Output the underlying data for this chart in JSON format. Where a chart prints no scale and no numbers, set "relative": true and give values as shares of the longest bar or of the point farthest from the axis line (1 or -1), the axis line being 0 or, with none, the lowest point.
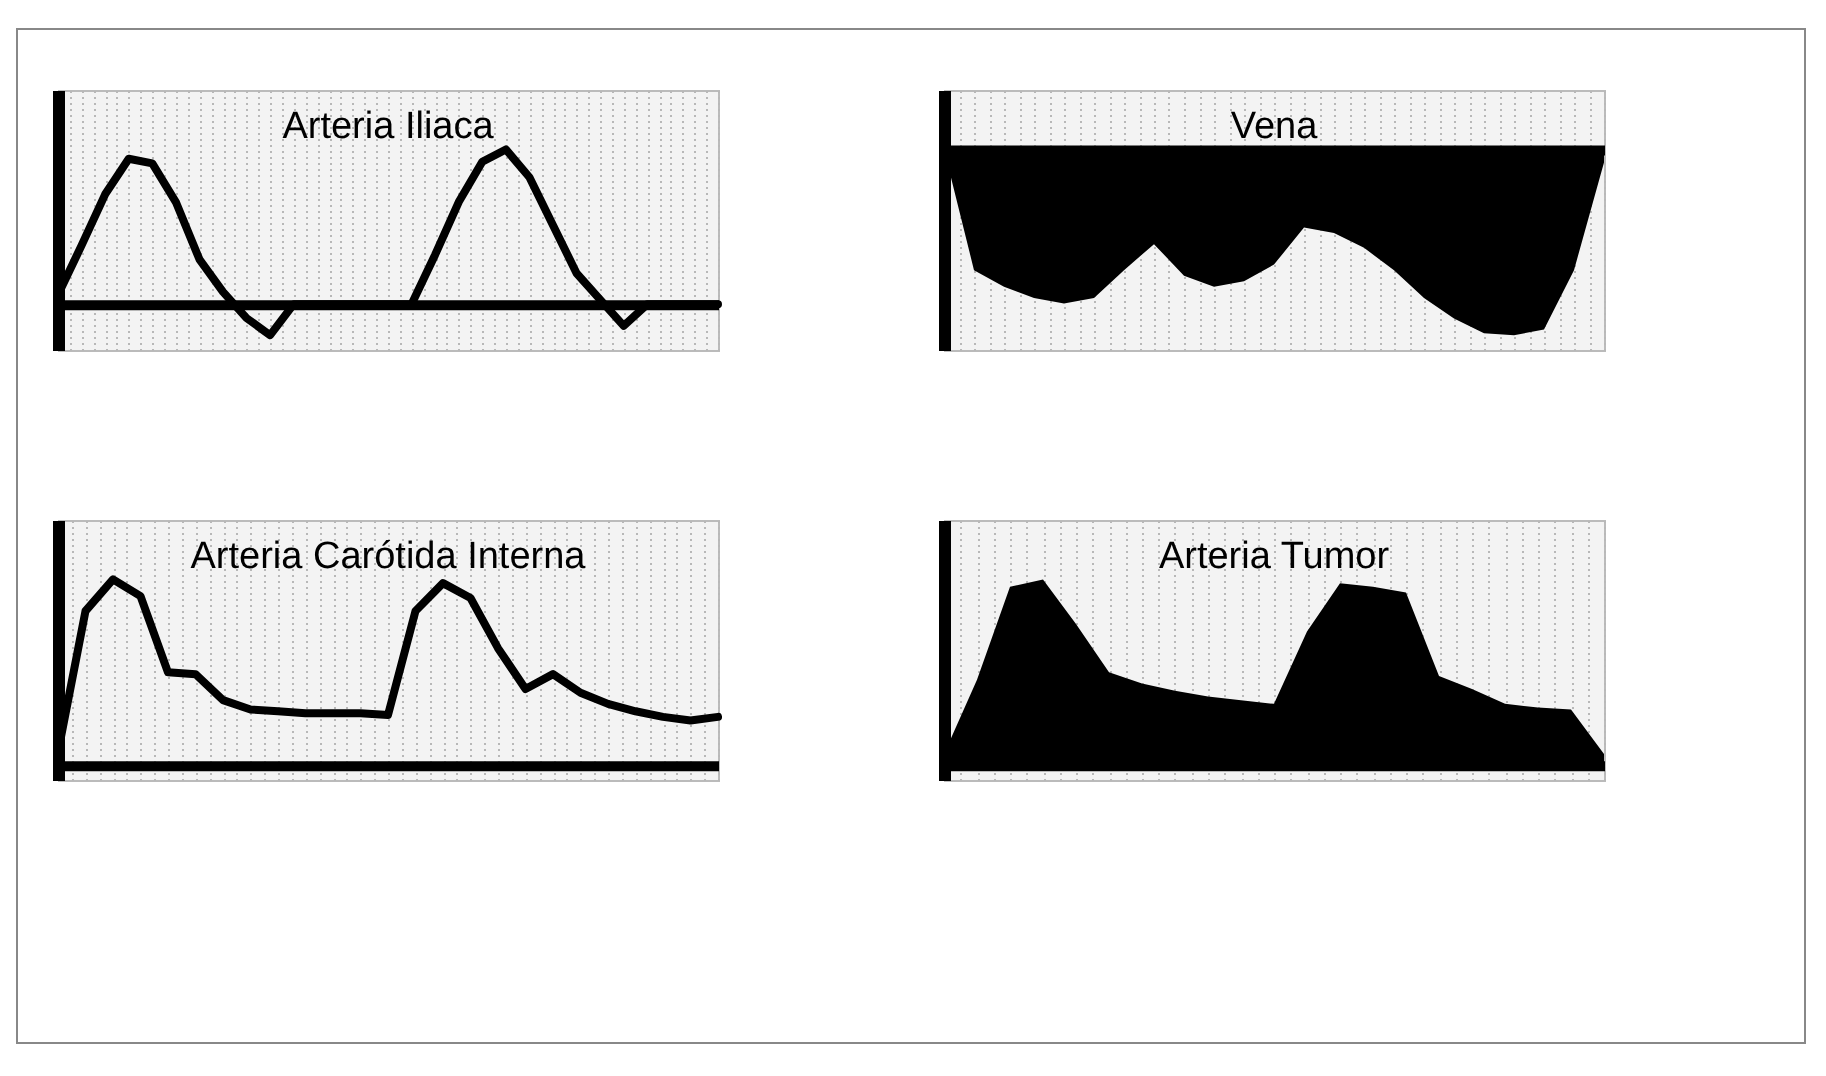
{
  "chart_data": [
    {
      "type": "line",
      "title": "Arteria Iliaca",
      "relative": true,
      "tick_labels": false,
      "grid": "x",
      "categories": [
        null,
        null,
        null,
        null,
        null,
        null,
        null,
        null,
        null,
        null,
        null,
        null,
        null,
        null,
        null,
        null,
        null,
        null,
        null,
        null,
        null,
        null,
        null,
        null,
        null,
        null,
        null,
        null,
        null
      ],
      "series": [
        {
          "color": "#000000",
          "values": [
            0.06,
            0.38,
            0.71,
            0.94,
            0.91,
            0.66,
            0.29,
            0.08,
            -0.09,
            -0.2,
            0,
            0,
            0,
            0,
            0,
            0,
            0.32,
            0.66,
            0.92,
            1,
            0.82,
            0.51,
            0.2,
            0.03,
            -0.14,
            0,
            0,
            0,
            0
          ]
        }
      ]
    },
    {
      "type": "area",
      "title": "Vena",
      "relative": true,
      "tick_labels": false,
      "grid": "x",
      "categories": [
        null,
        null,
        null,
        null,
        null,
        null,
        null,
        null,
        null,
        null,
        null,
        null,
        null,
        null,
        null,
        null,
        null,
        null,
        null,
        null,
        null,
        null,
        null
      ],
      "series": [
        {
          "color": "#000000",
          "values": [
            0,
            -0.65,
            -0.74,
            -0.8,
            -0.83,
            -0.8,
            -0.65,
            -0.51,
            -0.68,
            -0.74,
            -0.71,
            -0.62,
            -0.42,
            -0.45,
            -0.53,
            -0.65,
            -0.8,
            -0.91,
            -0.99,
            -1,
            -0.97,
            -0.65,
            -0.07
          ]
        }
      ]
    },
    {
      "type": "line",
      "title": "Arteria Carótida Interna",
      "relative": true,
      "tick_labels": false,
      "grid": "x",
      "categories": [
        null,
        null,
        null,
        null,
        null,
        null,
        null,
        null,
        null,
        null,
        null,
        null,
        null,
        null,
        null,
        null,
        null,
        null,
        null,
        null,
        null,
        null,
        null,
        null,
        null
      ],
      "series": [
        {
          "color": "#000000",
          "values": [
            0.07,
            0.83,
            1,
            0.91,
            0.5,
            0.49,
            0.35,
            0.3,
            0.29,
            0.28,
            0.28,
            0.28,
            0.27,
            0.83,
            0.98,
            0.9,
            0.63,
            0.41,
            0.49,
            0.39,
            0.33,
            0.29,
            0.26,
            0.24,
            0.26
          ]
        }
      ]
    },
    {
      "type": "area",
      "title": "Arteria Tumor",
      "relative": true,
      "tick_labels": false,
      "grid": "x",
      "categories": [
        null,
        null,
        null,
        null,
        null,
        null,
        null,
        null,
        null,
        null,
        null,
        null,
        null,
        null,
        null,
        null,
        null,
        null,
        null,
        null,
        null
      ],
      "series": [
        {
          "color": "#000000",
          "values": [
            0.06,
            0.46,
            0.96,
            1,
            0.76,
            0.5,
            0.44,
            0.4,
            0.37,
            0.35,
            0.33,
            0.72,
            0.98,
            0.96,
            0.93,
            0.48,
            0.41,
            0.33,
            0.31,
            0.3,
            0.06
          ]
        }
      ]
    }
  ]
}
